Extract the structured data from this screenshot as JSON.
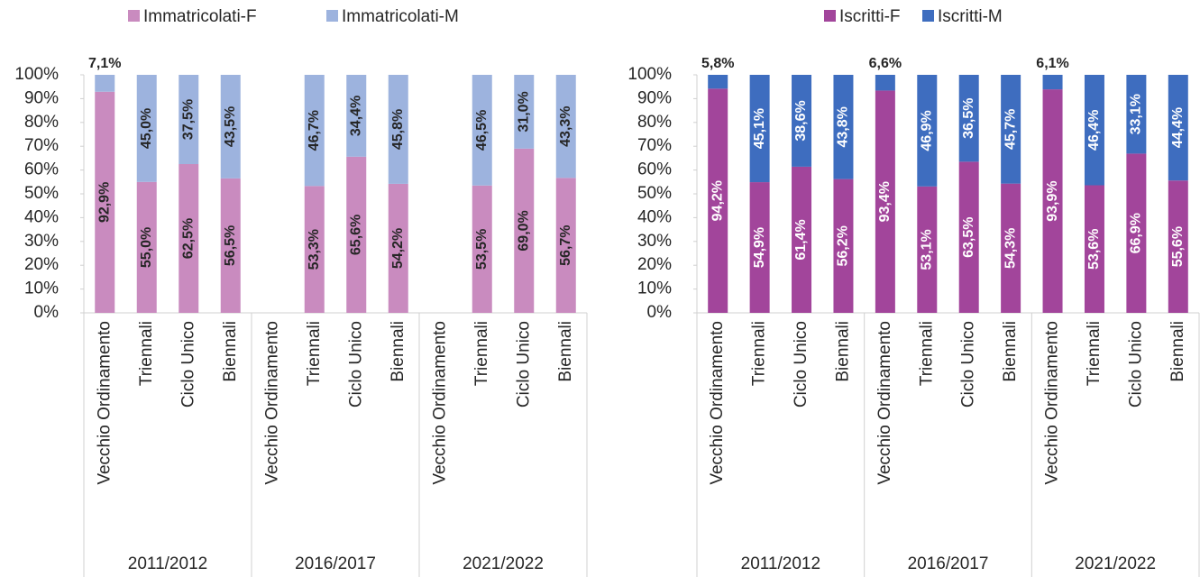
{
  "chart_data": [
    {
      "type": "bar",
      "stacked": true,
      "categories": [
        "Vecchio Ordinamento",
        "Triennali",
        "Ciclo Unico",
        "Biennali",
        "Vecchio Ordinamento",
        "Triennali",
        "Ciclo Unico",
        "Biennali",
        "Vecchio Ordinamento",
        "Triennali",
        "Ciclo Unico",
        "Biennali"
      ],
      "groups": [
        "2011/2012",
        "2016/2017",
        "2021/2022"
      ],
      "series": [
        {
          "name": "Immatricolati-F",
          "color": "#c98bbf",
          "label_color": "#262626",
          "values": [
            92.9,
            55.0,
            62.5,
            56.5,
            null,
            53.3,
            65.6,
            54.2,
            null,
            53.5,
            69.0,
            56.7
          ],
          "value_labels": [
            "92,9%",
            "55,0%",
            "62,5%",
            "56,5%",
            null,
            "53,3%",
            "65,6%",
            "54,2%",
            null,
            "53,5%",
            "69,0%",
            "56,7%"
          ]
        },
        {
          "name": "Immatricolati-M",
          "color": "#9db3de",
          "label_color": "#262626",
          "values": [
            7.1,
            45.0,
            37.5,
            43.5,
            null,
            46.7,
            34.4,
            45.8,
            null,
            46.5,
            31.0,
            43.3
          ],
          "value_labels": [
            "7,1%",
            "45,0%",
            "37,5%",
            "43,5%",
            null,
            "46,7%",
            "34,4%",
            "45,8%",
            null,
            "46,5%",
            "31,0%",
            "43,3%"
          ]
        }
      ],
      "ylim": [
        0,
        100
      ],
      "yticks": [
        {
          "value": 0,
          "label": "0%"
        },
        {
          "value": 10,
          "label": "10%"
        },
        {
          "value": 20,
          "label": "20%"
        },
        {
          "value": 30,
          "label": "30%"
        },
        {
          "value": 40,
          "label": "40%"
        },
        {
          "value": 50,
          "label": "50%"
        },
        {
          "value": 60,
          "label": "60%"
        },
        {
          "value": 70,
          "label": "70%"
        },
        {
          "value": 80,
          "label": "80%"
        },
        {
          "value": 90,
          "label": "90%"
        },
        {
          "value": 100,
          "label": "100%"
        }
      ],
      "legend": "top"
    },
    {
      "type": "bar",
      "stacked": true,
      "categories": [
        "Vecchio Ordinamento",
        "Triennali",
        "Ciclo Unico",
        "Biennali",
        "Vecchio Ordinamento",
        "Triennali",
        "Ciclo Unico",
        "Biennali",
        "Vecchio Ordinamento",
        "Triennali",
        "Ciclo Unico",
        "Biennali"
      ],
      "groups": [
        "2011/2012",
        "2016/2017",
        "2021/2022"
      ],
      "series": [
        {
          "name": "Iscritti-F",
          "color": "#a2459b",
          "label_color": "#ffffff",
          "values": [
            94.2,
            54.9,
            61.4,
            56.2,
            93.4,
            53.1,
            63.5,
            54.3,
            93.9,
            53.6,
            66.9,
            55.6
          ],
          "value_labels": [
            "94,2%",
            "54,9%",
            "61,4%",
            "56,2%",
            "93,4%",
            "53,1%",
            "63,5%",
            "54,3%",
            "93,9%",
            "53,6%",
            "66,9%",
            "55,6%"
          ]
        },
        {
          "name": "Iscritti-M",
          "color": "#3e6dbf",
          "label_color": "#ffffff",
          "values": [
            5.8,
            45.1,
            38.6,
            43.8,
            6.6,
            46.9,
            36.5,
            45.7,
            6.1,
            46.4,
            33.1,
            44.4
          ],
          "value_labels": [
            "5,8%",
            "45,1%",
            "38,6%",
            "43,8%",
            "6,6%",
            "46,9%",
            "36,5%",
            "45,7%",
            "6,1%",
            "46,4%",
            "33,1%",
            "44,4%"
          ]
        }
      ],
      "ylim": [
        0,
        100
      ],
      "yticks": [
        {
          "value": 0,
          "label": "0%"
        },
        {
          "value": 10,
          "label": "10%"
        },
        {
          "value": 20,
          "label": "20%"
        },
        {
          "value": 30,
          "label": "30%"
        },
        {
          "value": 40,
          "label": "40%"
        },
        {
          "value": 50,
          "label": "50%"
        },
        {
          "value": 60,
          "label": "60%"
        },
        {
          "value": 70,
          "label": "70%"
        },
        {
          "value": 80,
          "label": "80%"
        },
        {
          "value": 90,
          "label": "90%"
        },
        {
          "value": 100,
          "label": "100%"
        }
      ],
      "legend": "top"
    }
  ]
}
